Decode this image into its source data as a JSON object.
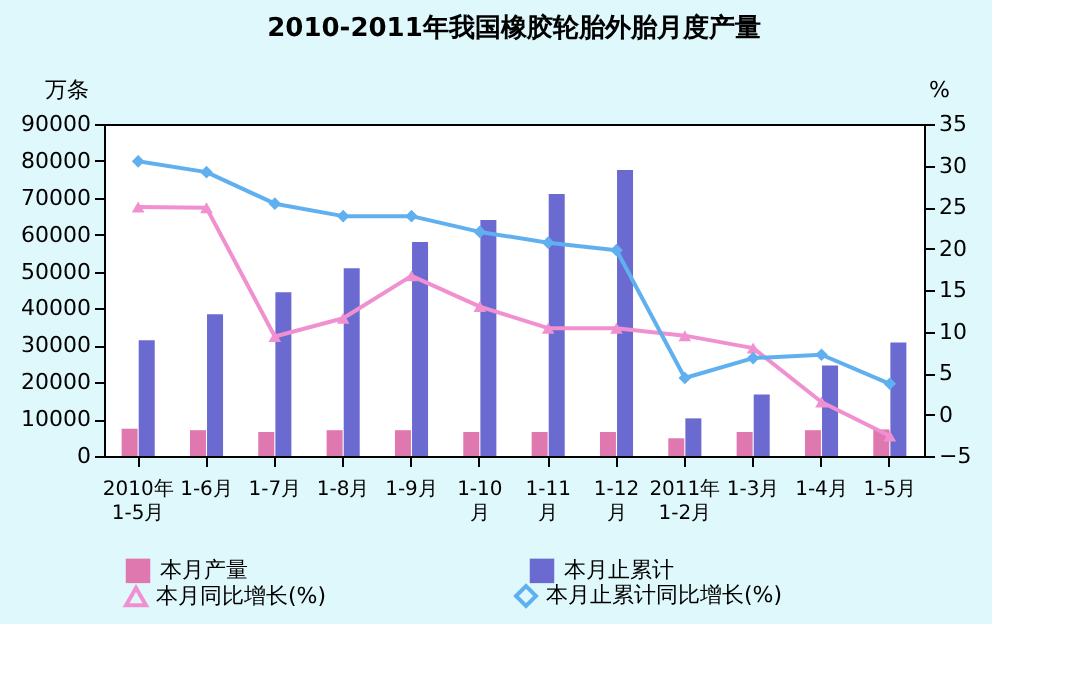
{
  "chart_data": {
    "type": "bar",
    "title": "2010-2011年我国橡胶轮胎外胎月度产量",
    "categories": [
      "2010年\n1-5月",
      "1-6月",
      "1-7月",
      "1-8月",
      "1-9月",
      "1-10\n月",
      "1-11\n月",
      "1-12\n月",
      "2011年\n1-2月",
      "1-3月",
      "1-4月",
      "1-5月"
    ],
    "series": [
      {
        "name": "本月产量",
        "color": "#e078b0",
        "values": [
          7400,
          7000,
          6500,
          7000,
          7000,
          6500,
          6500,
          6500,
          4800,
          6500,
          7000,
          7200
        ]
      },
      {
        "name": "本月止累计",
        "color": "#6a6ad0",
        "values": [
          31400,
          38400,
          44400,
          50900,
          58000,
          64000,
          71000,
          77500,
          10200,
          16700,
          24500,
          30800
        ]
      },
      {
        "name": "本月同比增长(%)",
        "type": "line",
        "axis": "y2",
        "marker": "triangle",
        "color": "#f090d0",
        "values": [
          25,
          24.9,
          9.4,
          11.6,
          16.7,
          13,
          10.4,
          10.4,
          9.5,
          8,
          1.5,
          -2.6
        ]
      },
      {
        "name": "本月止累计同比增长(%)",
        "type": "line",
        "axis": "y2",
        "marker": "diamond",
        "color": "#60b0f0",
        "values": [
          30.5,
          29.2,
          25.4,
          23.9,
          23.9,
          22,
          20.7,
          19.8,
          4.4,
          6.8,
          7.2,
          3.7
        ]
      }
    ],
    "ylabel": "万条",
    "y2label": "%",
    "ylim": [
      0,
      90000
    ],
    "yticks": [
      0,
      10000,
      20000,
      30000,
      40000,
      50000,
      60000,
      70000,
      80000,
      90000
    ],
    "y2lim": [
      -5,
      35
    ],
    "y2ticks": [
      -5,
      0,
      5,
      10,
      15,
      20,
      25,
      30,
      35
    ],
    "legend": "bottom",
    "grid": false
  }
}
